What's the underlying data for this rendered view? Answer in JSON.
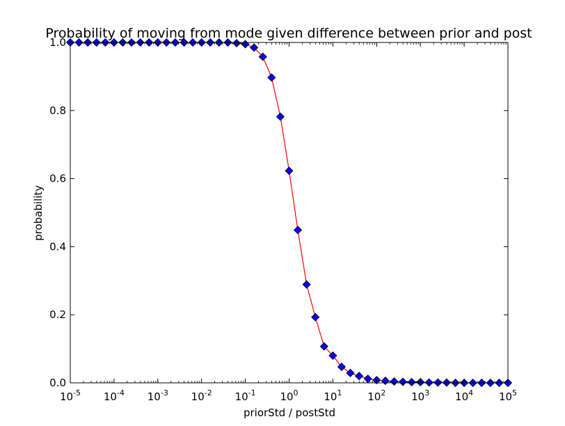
{
  "chart_data": {
    "type": "line",
    "title": "Probability of moving from mode given difference between prior and post",
    "xlabel": "priorStd / postStd",
    "ylabel": "probability",
    "x_scale": "log",
    "xlim": [
      1e-05,
      100000.0
    ],
    "ylim": [
      0,
      1
    ],
    "x_ticks": [
      {
        "base": "10",
        "exp": "-5"
      },
      {
        "base": "10",
        "exp": "-4"
      },
      {
        "base": "10",
        "exp": "-3"
      },
      {
        "base": "10",
        "exp": "-2"
      },
      {
        "base": "10",
        "exp": "-1"
      },
      {
        "base": "10",
        "exp": "0"
      },
      {
        "base": "10",
        "exp": "1"
      },
      {
        "base": "10",
        "exp": "2"
      },
      {
        "base": "10",
        "exp": "3"
      },
      {
        "base": "10",
        "exp": "4"
      },
      {
        "base": "10",
        "exp": "5"
      }
    ],
    "y_ticks": [
      "0.0",
      "0.2",
      "0.4",
      "0.6",
      "0.8",
      "1.0"
    ],
    "line_color": "#ff0000",
    "marker_color": "#0000ff",
    "marker": "diamond",
    "grid": false,
    "series": [
      {
        "x": [
          1e-05,
          1.58e-05,
          2.51e-05,
          3.98e-05,
          6.31e-05,
          0.0001,
          0.000158,
          0.000251,
          0.000398,
          0.000631,
          0.001,
          0.00158,
          0.00251,
          0.00398,
          0.00631,
          0.01,
          0.0158,
          0.0251,
          0.0398,
          0.0631,
          0.1,
          0.158,
          0.251,
          0.398,
          0.631,
          1.0,
          1.58,
          2.51,
          3.98,
          6.31,
          10.0,
          15.8,
          25.1,
          39.8,
          63.1,
          100,
          158,
          251,
          398,
          631,
          1000,
          1580,
          2510,
          3980,
          6310,
          10000,
          15800,
          25100,
          39800,
          63100,
          100000
        ],
        "values": [
          1.0,
          1.0,
          1.0,
          1.0,
          1.0,
          1.0,
          1.0,
          1.0,
          1.0,
          1.0,
          1.0,
          1.0,
          1.0,
          1.0,
          1.0,
          1.0,
          1.0,
          1.0,
          1.0,
          0.998,
          0.995,
          0.985,
          0.958,
          0.897,
          0.782,
          0.623,
          0.449,
          0.289,
          0.193,
          0.107,
          0.08,
          0.047,
          0.029,
          0.02,
          0.012,
          0.008,
          0.006,
          0.004,
          0.003,
          0.002,
          0.002,
          0.001,
          0.001,
          0.001,
          0.0,
          0.0,
          0.0,
          0.0,
          0.0,
          0.0,
          0.0
        ]
      }
    ]
  }
}
